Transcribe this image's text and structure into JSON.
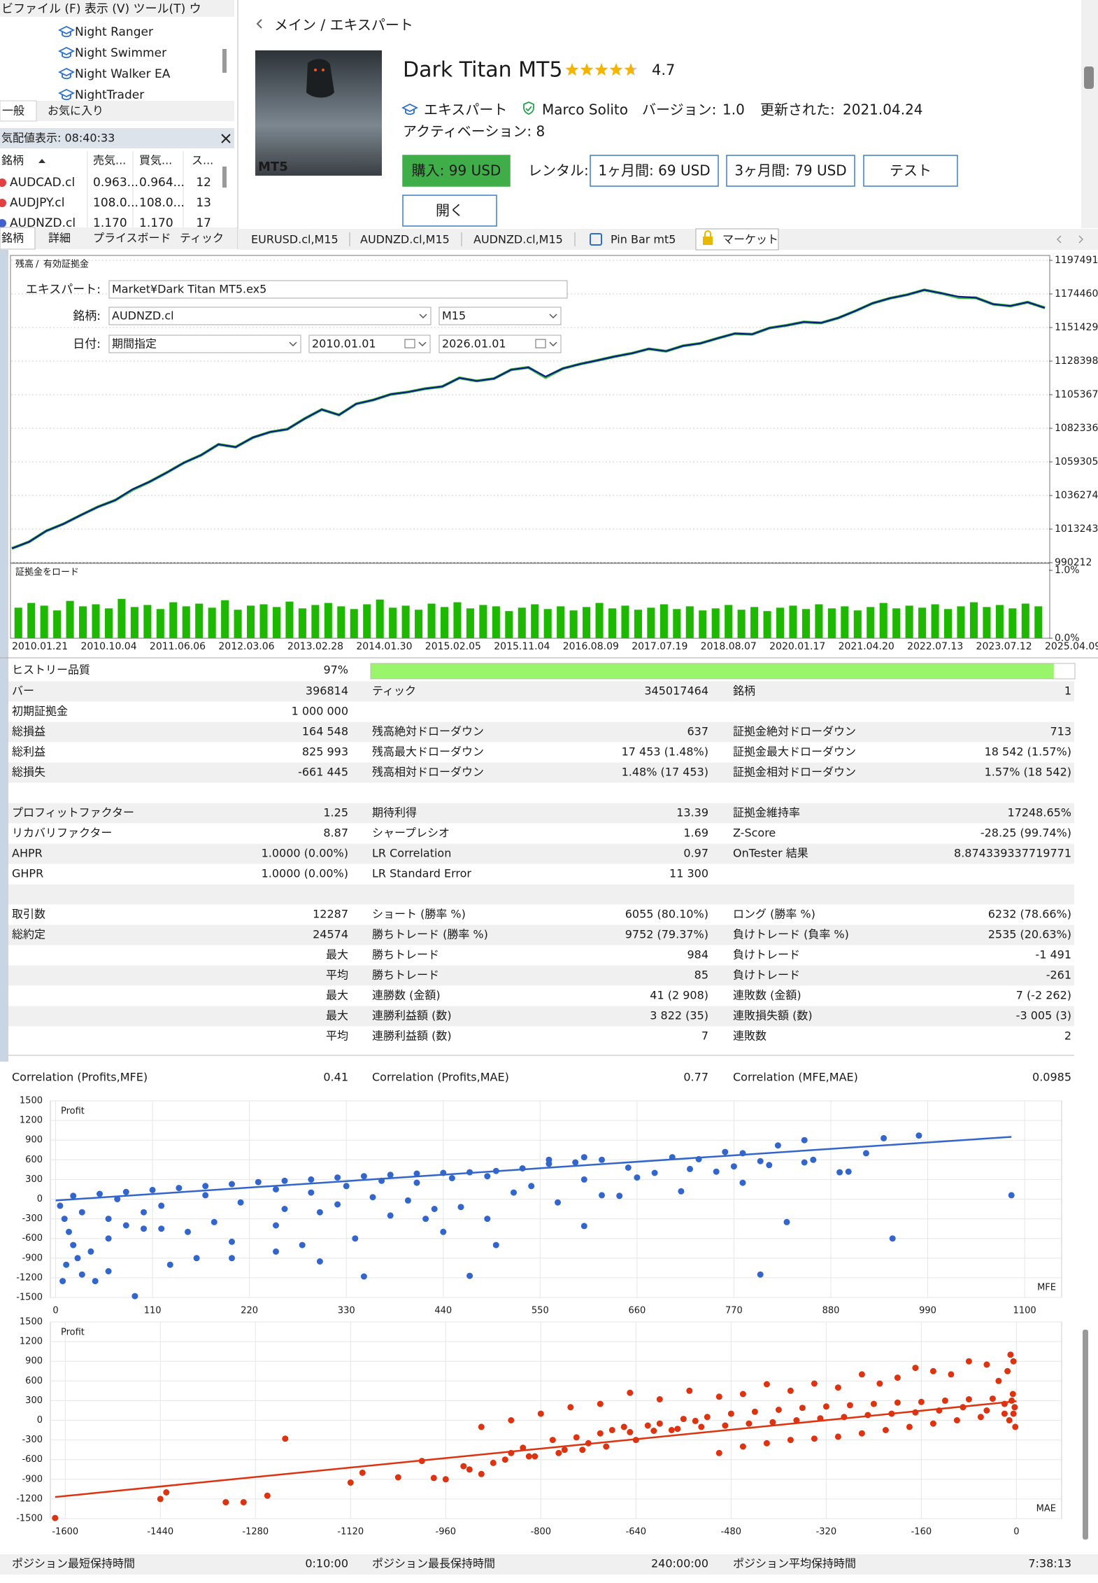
{
  "navigator": {
    "menu": "ビファイル (F) 表示 (V) ツール(T) ウ",
    "items": [
      "Night Ranger",
      "Night Swimmer",
      "Night Walker EA",
      "NightTrader"
    ],
    "tabs": [
      "一般",
      "お気に入り"
    ]
  },
  "market_watch": {
    "title": "気配値表示: 08:40:33",
    "columns": [
      "銘柄",
      "売気...",
      "買気...",
      "ス..."
    ],
    "rows": [
      [
        "AUDCAD.cl",
        "0.963...",
        "0.964...",
        "12"
      ],
      [
        "AUDJPY.cl",
        "108.0...",
        "108.0...",
        "13"
      ],
      [
        "AUDNZD.cl",
        "1.170",
        "1.170",
        "17"
      ]
    ],
    "tabs": [
      "銘柄",
      "詳細",
      "プライスボード",
      "ティック"
    ]
  },
  "product": {
    "breadcrumb": "メイン / エキスパート",
    "title": "Dark Titan MT5",
    "rating": 4.7,
    "image_badge": "MT5",
    "category": "エキスパート",
    "author": "Marco Solito",
    "version_label": "バージョン:",
    "version": "1.0",
    "updated_label": "更新された:",
    "updated": "2021.04.24",
    "activations": "アクティベーション: 8",
    "buy": "購入: 99 USD",
    "rent_label": "レンタル:",
    "rent1": "1ヶ月間: 69 USD",
    "rent3": "3ヶ月間: 79 USD",
    "test": "テスト",
    "open": "開く"
  },
  "chart_tabs": [
    "EURUSD.cl,M15",
    "AUDNZD.cl,M15",
    "AUDNZD.cl,M15",
    "Pin Bar mt5",
    "マーケット"
  ],
  "tester": {
    "expert_label": "エキスパート:",
    "expert": "Market¥Dark Titan MT5.ex5",
    "symbol_label": "銘柄:",
    "symbol": "AUDNZD.cl",
    "period": "M15",
    "date_label": "日付:",
    "date_mode": "期間指定",
    "from": "2010.01.01",
    "to": "2026.01.01"
  },
  "chart_data": [
    {
      "type": "line",
      "legend_separator": "/",
      "x": [
        "2010.01.21",
        null,
        null,
        null,
        "2010.10.04",
        null,
        null,
        null,
        "2011.06.06",
        null,
        null,
        null,
        "2012.03.06",
        null,
        null,
        null,
        "2013.02.28",
        null,
        null,
        null,
        "2014.01.30",
        null,
        null,
        null,
        "2015.02.05",
        null,
        null,
        null,
        "2015.11.04",
        null,
        null,
        null,
        "2016.08.09",
        null,
        null,
        null,
        "2017.07.19",
        null,
        null,
        null,
        "2018.08.07",
        null,
        null,
        null,
        "2020.01.17",
        null,
        null,
        null,
        "2021.04.20",
        null,
        null,
        null,
        "2022.07.13",
        null,
        null,
        null,
        "2023.07.12",
        null,
        null,
        null,
        "2025.04.09"
      ],
      "series": [
        {
          "name": "残高",
          "color": "#0a1a8a",
          "values": [
            1000000,
            1004500,
            1012000,
            1016800,
            1022800,
            1028500,
            1033000,
            1040500,
            1045700,
            1052000,
            1058800,
            1064000,
            1071300,
            1069500,
            1076000,
            1079800,
            1081700,
            1088900,
            1095200,
            1091500,
            1099100,
            1101800,
            1105600,
            1107200,
            1109500,
            1111000,
            1116900,
            1114800,
            1116400,
            1122500,
            1124100,
            1117800,
            1123300,
            1126400,
            1128900,
            1131500,
            1133700,
            1136800,
            1135200,
            1138900,
            1140600,
            1144100,
            1147300,
            1146800,
            1151100,
            1152900,
            1155200,
            1154600,
            1158000,
            1162800,
            1168100,
            1171500,
            1173900,
            1177200,
            1174900,
            1172600,
            1171800,
            1167400,
            1166200,
            1168800,
            1164900
          ]
        },
        {
          "name": "有効証拠金",
          "color": "#33bb33",
          "values": [
            1000000,
            1004500,
            1012000,
            1016800,
            1022800,
            1028500,
            1033000,
            1040100,
            1045700,
            1052000,
            1058800,
            1064000,
            1071300,
            1069500,
            1076000,
            1079800,
            1081700,
            1088900,
            1095200,
            1091500,
            1099100,
            1101800,
            1105600,
            1107200,
            1109500,
            1111000,
            1116900,
            1114800,
            1116400,
            1122500,
            1124100,
            1117200,
            1123300,
            1126400,
            1128900,
            1131500,
            1133700,
            1136800,
            1135200,
            1138900,
            1140600,
            1144100,
            1147300,
            1146800,
            1151100,
            1152900,
            1155200,
            1154600,
            1158000,
            1162800,
            1168100,
            1171500,
            1173900,
            1177200,
            1174900,
            1172000,
            1171800,
            1167400,
            1166200,
            1168800,
            1164900
          ]
        }
      ],
      "ylim": [
        990212,
        1197491
      ],
      "yticks": [
        990212,
        1013243,
        1036274,
        1059305,
        1082336,
        1105367,
        1128398,
        1151429,
        1174460,
        1197491
      ]
    },
    {
      "type": "bar",
      "title": "証拠金をロード",
      "color": "#1fb800",
      "values": [
        0.45,
        0.52,
        0.48,
        0.41,
        0.55,
        0.47,
        0.5,
        0.44,
        0.58,
        0.46,
        0.49,
        0.43,
        0.53,
        0.47,
        0.51,
        0.45,
        0.56,
        0.42,
        0.48,
        0.5,
        0.46,
        0.54,
        0.44,
        0.49,
        0.52,
        0.47,
        0.43,
        0.5,
        0.57,
        0.45,
        0.48,
        0.42,
        0.51,
        0.46,
        0.53,
        0.44,
        0.49,
        0.47,
        0.4,
        0.45,
        0.5,
        0.43,
        0.47,
        0.41,
        0.46,
        0.52,
        0.44,
        0.48,
        0.42,
        0.45,
        0.5,
        0.43,
        0.47,
        0.41,
        0.44,
        0.49,
        0.42,
        0.46,
        0.4,
        0.45,
        0.48,
        0.43,
        0.5,
        0.44,
        0.47,
        0.41,
        0.46,
        0.52,
        0.44,
        0.48,
        0.45,
        0.5,
        0.43,
        0.47,
        0.53,
        0.46,
        0.49,
        0.44,
        0.51,
        0.47
      ],
      "ylim": [
        0,
        1
      ],
      "yticks": [
        {
          "value": 0,
          "label": "0.0%"
        },
        {
          "value": 1,
          "label": "1.0%"
        }
      ]
    },
    {
      "type": "scatter",
      "ylabel": "Profit",
      "xlabel": "MFE",
      "color": "#3366cc",
      "grid": true,
      "x": [
        5,
        10,
        15,
        20,
        25,
        8,
        30,
        45,
        90,
        12,
        40,
        60,
        80,
        100,
        20,
        50,
        80,
        110,
        140,
        170,
        200,
        230,
        260,
        290,
        320,
        350,
        380,
        410,
        440,
        470,
        500,
        530,
        560,
        590,
        620,
        650,
        680,
        720,
        750,
        780,
        810,
        850,
        890,
        920,
        560,
        600,
        700,
        730,
        770,
        800,
        860,
        940,
        900,
        980,
        820,
        780,
        760,
        850,
        620,
        460,
        500,
        600,
        640,
        710,
        800,
        830,
        950,
        1085,
        470,
        350,
        300,
        250,
        200,
        150,
        100,
        60,
        250,
        300,
        380,
        420,
        430,
        340,
        280,
        200,
        160,
        130,
        60,
        120,
        180,
        260,
        320,
        360,
        400,
        440,
        490,
        520,
        540,
        570,
        600,
        660,
        30,
        70,
        120,
        170,
        210,
        250,
        290,
        330,
        370,
        410,
        450,
        490
      ],
      "values": [
        -100,
        -300,
        -500,
        -700,
        -900,
        -1250,
        -1150,
        -1250,
        -1480,
        -1000,
        -800,
        -600,
        -400,
        -200,
        50,
        80,
        110,
        140,
        170,
        200,
        230,
        260,
        280,
        300,
        330,
        350,
        370,
        390,
        400,
        410,
        430,
        470,
        540,
        560,
        600,
        480,
        400,
        460,
        420,
        250,
        520,
        560,
        410,
        700,
        600,
        640,
        640,
        610,
        500,
        580,
        600,
        930,
        420,
        970,
        820,
        700,
        720,
        900,
        60,
        -120,
        -700,
        -410,
        50,
        120,
        -1150,
        -350,
        -600,
        60,
        -1170,
        -1180,
        -950,
        -800,
        -650,
        -500,
        -450,
        -300,
        -400,
        -200,
        -250,
        -300,
        -150,
        -600,
        -700,
        -900,
        -900,
        -1000,
        -1100,
        -450,
        -350,
        -150,
        -80,
        30,
        -20,
        -500,
        -300,
        100,
        200,
        -50,
        300,
        330,
        -200,
        0,
        -100,
        60,
        -50,
        150,
        100,
        200,
        280,
        250,
        320,
        350
      ],
      "trendline": {
        "x": [
          0,
          1085
        ],
        "values": [
          -20,
          950
        ]
      },
      "xlim": [
        -6,
        1142
      ],
      "xticks": [
        0,
        110,
        220,
        330,
        440,
        550,
        660,
        770,
        880,
        990,
        1100
      ],
      "ylim": [
        -1500,
        1500
      ],
      "yticks": [
        -1500,
        -1200,
        -900,
        -600,
        -300,
        0,
        300,
        600,
        900,
        1200,
        1500
      ]
    },
    {
      "type": "scatter",
      "ylabel": "Profit",
      "xlabel": "MAE",
      "color": "#dd3311",
      "grid": true,
      "x": [
        -1617,
        -1440,
        -1430,
        -1330,
        -1300,
        -1260,
        -1230,
        -1120,
        -1100,
        -1040,
        -1000,
        -980,
        -960,
        -930,
        -920,
        -900,
        -880,
        -850,
        -830,
        -810,
        -780,
        -760,
        -740,
        -720,
        -700,
        -680,
        -660,
        -640,
        -620,
        -600,
        -580,
        -560,
        -540,
        -520,
        -500,
        -480,
        -460,
        -440,
        -420,
        -400,
        -380,
        -360,
        -340,
        -320,
        -300,
        -280,
        -260,
        -240,
        -220,
        -200,
        -180,
        -160,
        -140,
        -120,
        -100,
        -80,
        -60,
        -40,
        -20,
        -5,
        -10,
        -15,
        -30,
        -50,
        -80,
        -110,
        -140,
        -170,
        -200,
        -230,
        -260,
        -300,
        -340,
        -380,
        -420,
        -460,
        -500,
        -550,
        -600,
        -650,
        -700,
        -750,
        -800,
        -850,
        -900,
        -5,
        -3,
        -8,
        -12,
        -2,
        -6,
        -20,
        -50,
        -90,
        -130,
        -170,
        -210,
        -250,
        -290,
        -330,
        -370,
        -410,
        -450,
        -490,
        -530,
        -570,
        -610,
        -650,
        -690,
        -730,
        -770,
        -820,
        -860
      ],
      "values": [
        -1490,
        -1200,
        -1100,
        -1250,
        -1250,
        -1150,
        -280,
        -950,
        -800,
        -870,
        -620,
        -880,
        -900,
        -700,
        -750,
        -820,
        -650,
        -500,
        -420,
        -550,
        -300,
        -450,
        -260,
        -350,
        -200,
        -150,
        -100,
        -300,
        -80,
        -50,
        -150,
        20,
        -10,
        50,
        -500,
        100,
        -400,
        130,
        -350,
        160,
        -300,
        190,
        -280,
        210,
        -250,
        230,
        -200,
        250,
        -150,
        270,
        -100,
        280,
        -50,
        300,
        0,
        320,
        50,
        330,
        100,
        900,
        1000,
        750,
        600,
        850,
        900,
        700,
        750,
        800,
        650,
        560,
        700,
        500,
        560,
        450,
        550,
        400,
        360,
        450,
        320,
        420,
        250,
        200,
        100,
        0,
        -100,
        100,
        200,
        300,
        0,
        -100,
        400,
        250,
        150,
        200,
        150,
        120,
        100,
        80,
        50,
        30,
        0,
        -30,
        -50,
        -80,
        -100,
        -130,
        -160,
        -180,
        -400,
        -450,
        -500,
        -550,
        -600
      ],
      "trendline": {
        "x": [
          -1617,
          0
        ],
        "values": [
          -1170,
          290
        ]
      },
      "xlim": [
        -1625,
        76
      ],
      "xticks": [
        -1600,
        -1440,
        -1280,
        -1120,
        -960,
        -800,
        -640,
        -480,
        -320,
        -160,
        0
      ],
      "ylim": [
        -1500,
        1500
      ],
      "yticks": [
        -1500,
        -1200,
        -900,
        -600,
        -300,
        0,
        300,
        600,
        900,
        1200,
        1500
      ]
    }
  ],
  "report": {
    "history": {
      "label": "ヒストリー品質",
      "value": 97,
      "value_label": "97%"
    },
    "rows": [
      {
        "left": {
          "label": "バー",
          "value": "396814"
        },
        "middle": {
          "label": "ティック",
          "value": "345017464"
        },
        "right": {
          "label": "銘柄",
          "value": "1"
        }
      },
      {
        "left": {
          "label": "初期証拠金",
          "value": "1 000 000"
        }
      },
      {
        "left": {
          "label": "総損益",
          "value": "164 548"
        },
        "middle": {
          "label": "残高絶対ドローダウン",
          "value": "637"
        },
        "right": {
          "label": "証拠金絶対ドローダウン",
          "value": "713"
        }
      },
      {
        "left": {
          "label": "総利益",
          "value": "825 993"
        },
        "middle": {
          "label": "残高最大ドローダウン",
          "value": "17 453 (1.48%)"
        },
        "right": {
          "label": "証拠金最大ドローダウン",
          "value": "18 542 (1.57%)"
        }
      },
      {
        "left": {
          "label": "総損失",
          "value": "-661 445"
        },
        "middle": {
          "label": "残高相対ドローダウン",
          "value": "1.48% (17 453)"
        },
        "right": {
          "label": "証拠金相対ドローダウン",
          "value": "1.57% (18 542)"
        }
      },
      {},
      {
        "left": {
          "label": "プロフィットファクター",
          "value": "1.25"
        },
        "middle": {
          "label": "期待利得",
          "value": "13.39"
        },
        "right": {
          "label": "証拠金維持率",
          "value": "17248.65%"
        }
      },
      {
        "left": {
          "label": "リカバリファクター",
          "value": "8.87"
        },
        "middle": {
          "label": "シャープレシオ",
          "value": "1.69"
        },
        "right": {
          "label": "Z-Score",
          "value": "-28.25 (99.74%)"
        }
      },
      {
        "left": {
          "label": "AHPR",
          "value": "1.0000 (0.00%)"
        },
        "middle": {
          "label": "LR Correlation",
          "value": "0.97"
        },
        "right": {
          "label": "OnTester 結果",
          "value": "8.874339337719771"
        }
      },
      {
        "left": {
          "label": "GHPR",
          "value": "1.0000 (0.00%)"
        },
        "middle": {
          "label": "LR Standard Error",
          "value": "11 300"
        }
      },
      {},
      {
        "left": {
          "label": "取引数",
          "value": "12287"
        },
        "middle": {
          "label": "ショート (勝率 %)",
          "value": "6055 (80.10%)"
        },
        "right": {
          "label": "ロング (勝率 %)",
          "value": "6232 (78.66%)"
        }
      },
      {
        "left": {
          "label": "総約定",
          "value": "24574"
        },
        "middle": {
          "label": "勝ちトレード (勝率 %)",
          "value": "9752 (79.37%)"
        },
        "right": {
          "label": "負けトレード (負率 %)",
          "value": "2535 (20.63%)"
        }
      },
      {
        "left": {
          "value": "最大"
        },
        "middle": {
          "label": "勝ちトレード",
          "value": "984"
        },
        "right": {
          "label": "負けトレード",
          "value": "-1 491"
        }
      },
      {
        "left": {
          "value": "平均"
        },
        "middle": {
          "label": "勝ちトレード",
          "value": "85"
        },
        "right": {
          "label": "負けトレード",
          "value": "-261"
        }
      },
      {
        "left": {
          "value": "最大"
        },
        "middle": {
          "label": "連勝数 (金額)",
          "value": "41 (2 908)"
        },
        "right": {
          "label": "連敗数 (金額)",
          "value": "7 (-2 262)"
        }
      },
      {
        "left": {
          "value": "最大"
        },
        "middle": {
          "label": "連勝利益額 (数)",
          "value": "3 822 (35)"
        },
        "right": {
          "label": "連敗損失額 (数)",
          "value": "-3 005 (3)"
        }
      },
      {
        "left": {
          "value": "平均"
        },
        "middle": {
          "label": "連勝利益額 (数)",
          "value": "7"
        },
        "right": {
          "label": "連敗数",
          "value": "2"
        }
      }
    ],
    "correlation": {
      "left": {
        "label": "Correlation (Profits,MFE)",
        "value": "0.41"
      },
      "middle": {
        "label": "Correlation (Profits,MAE)",
        "value": "0.77"
      },
      "right": {
        "label": "Correlation (MFE,MAE)",
        "value": "0.0985"
      }
    },
    "holding": {
      "left": {
        "label": "ポジション最短保持時間",
        "value": "0:10:00"
      },
      "middle": {
        "label": "ポジション最長保持時間",
        "value": "240:00:00"
      },
      "right": {
        "label": "ポジション平均保持時間",
        "value": "7:38:13"
      }
    }
  }
}
